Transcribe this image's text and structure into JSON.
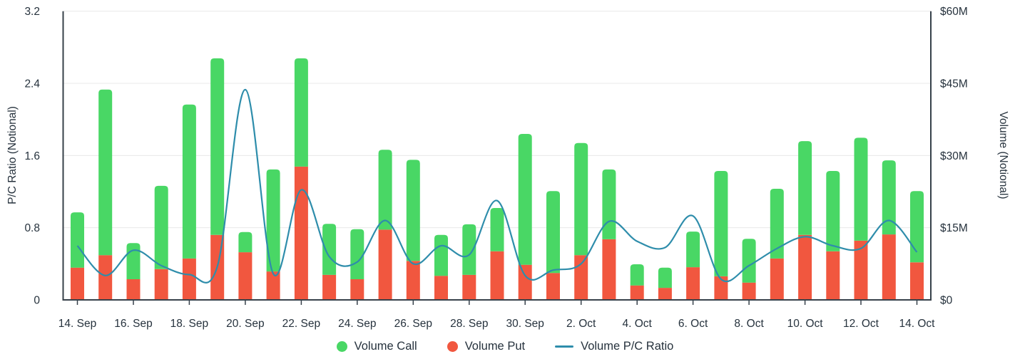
{
  "chart_data": {
    "type": "combo",
    "subtype": "stacked-bar-with-line",
    "categories": [
      "14. Sep",
      "15. Sep",
      "16. Sep",
      "17. Sep",
      "18. Sep",
      "19. Sep",
      "20. Sep",
      "21. Sep",
      "22. Sep",
      "23. Sep",
      "24. Sep",
      "25. Sep",
      "26. Sep",
      "27. Sep",
      "28. Sep",
      "29. Sep",
      "30. Sep",
      "1. Oct",
      "2. Oct",
      "3. Oct",
      "4. Oct",
      "5. Oct",
      "6. Oct",
      "7. Oct",
      "8. Oct",
      "9. Oct",
      "10. Oct",
      "11. Oct",
      "12. Oct",
      "13. Oct",
      "14. Oct"
    ],
    "x_axis": {
      "tick_labels": [
        "14. Sep",
        "16. Sep",
        "18. Sep",
        "20. Sep",
        "22. Sep",
        "24. Sep",
        "26. Sep",
        "28. Sep",
        "30. Sep",
        "2. Oct",
        "4. Oct",
        "6. Oct",
        "8. Oct",
        "10. Oct",
        "12. Oct",
        "14. Oct"
      ],
      "label_every_n": 2
    },
    "left_axis": {
      "label": "P/C Ratio (Notional)",
      "tick_labels": [
        "0",
        "0.8",
        "1.6",
        "2.4",
        "3.2"
      ],
      "tick_values": [
        0,
        0.8,
        1.6,
        2.4,
        3.2
      ],
      "range": [
        0,
        3.2
      ]
    },
    "right_axis": {
      "label": "Volume (Notional)",
      "tick_labels": [
        "$0",
        "$15M",
        "$30M",
        "$45M",
        "$60M"
      ],
      "tick_values_musd": [
        0,
        15,
        30,
        45,
        60
      ],
      "range_musd": [
        0,
        60
      ]
    },
    "series": [
      {
        "name": "Volume Put",
        "type": "bar",
        "stack": "volume",
        "axis": "right",
        "unit": "$M",
        "color": "#f1573f",
        "values": [
          6.7,
          9.3,
          4.3,
          6.4,
          8.6,
          13.5,
          9.9,
          5.9,
          27.7,
          5.2,
          4.3,
          14.6,
          8.1,
          5.0,
          5.2,
          10.1,
          7.3,
          5.6,
          9.3,
          12.6,
          3.0,
          2.5,
          6.8,
          4.9,
          3.6,
          8.6,
          13.5,
          10.1,
          12.3,
          13.6,
          7.8
        ]
      },
      {
        "name": "Volume Call",
        "type": "bar",
        "stack": "volume",
        "axis": "right",
        "unit": "$M",
        "color": "#49d765",
        "values": [
          11.5,
          34.4,
          7.5,
          17.3,
          32.0,
          36.7,
          4.2,
          21.2,
          22.5,
          10.6,
          10.4,
          16.6,
          21.0,
          8.5,
          10.5,
          9.0,
          27.2,
          17.0,
          23.3,
          14.5,
          4.4,
          4.2,
          7.4,
          21.9,
          9.1,
          14.5,
          19.5,
          16.7,
          21.4,
          15.4,
          14.8
        ]
      },
      {
        "name": "Volume P/C Ratio",
        "type": "line",
        "axis": "left",
        "color": "#2e8dab",
        "values": [
          0.6,
          0.27,
          0.55,
          0.38,
          0.28,
          0.37,
          2.33,
          0.29,
          1.22,
          0.48,
          0.42,
          0.88,
          0.4,
          0.6,
          0.5,
          1.1,
          0.27,
          0.33,
          0.4,
          0.87,
          0.65,
          0.58,
          0.93,
          0.23,
          0.38,
          0.57,
          0.7,
          0.6,
          0.57,
          0.88,
          0.53
        ]
      }
    ],
    "legend": [
      {
        "label": "Volume Call",
        "color": "#49d765",
        "marker": "circle"
      },
      {
        "label": "Volume Put",
        "color": "#f1573f",
        "marker": "circle"
      },
      {
        "label": "Volume P/C Ratio",
        "color": "#2e8dab",
        "marker": "line"
      }
    ],
    "grid": {
      "horizontal": true,
      "color": "#e8e8e8"
    },
    "axis_line_color": "#37414a",
    "text_color": "#26323d",
    "background": "#ffffff"
  }
}
